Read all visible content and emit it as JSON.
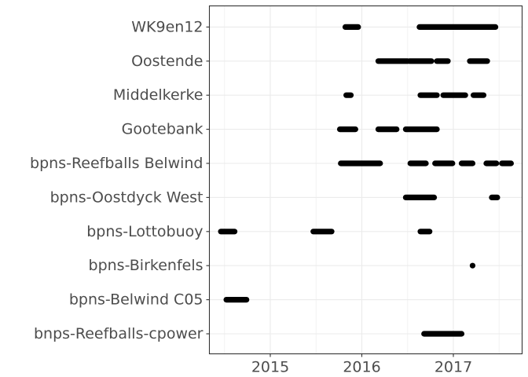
{
  "chart_data": {
    "type": "scatter",
    "title": "",
    "xlabel": "",
    "ylabel": "",
    "xlim": [
      2014.4,
      2017.8
    ],
    "x_ticks": [
      2015,
      2016,
      2017
    ],
    "x_tick_labels": [
      "2015",
      "2016",
      "2017"
    ],
    "minor_x_ticks": [
      2014.5,
      2015.5,
      2016.5,
      2017.5
    ],
    "grid": true,
    "legend": "none",
    "point_color": "#000000",
    "categories": [
      "bnps-Reefballs-cpower",
      "bpns-Belwind C05",
      "bpns-Birkenfels",
      "bpns-Lottobuoy",
      "bpns-Oostdyck West",
      "bpns-Reefballs Belwind",
      "Gootebank",
      "Middelkerke",
      "Oostende",
      "WK9en12"
    ],
    "series": [
      {
        "category": "WK9en12",
        "ranges": [
          [
            2015.82,
            2015.96
          ],
          [
            2016.63,
            2017.46
          ]
        ]
      },
      {
        "category": "Oostende",
        "ranges": [
          [
            2016.18,
            2016.5
          ],
          [
            2016.52,
            2016.76
          ],
          [
            2016.82,
            2016.94
          ],
          [
            2017.18,
            2017.37
          ]
        ]
      },
      {
        "category": "Middelkerke",
        "ranges": [
          [
            2015.83,
            2015.88
          ],
          [
            2016.64,
            2016.82
          ],
          [
            2016.89,
            2017.13
          ],
          [
            2017.22,
            2017.33
          ]
        ]
      },
      {
        "category": "Gootebank",
        "ranges": [
          [
            2015.76,
            2015.93
          ],
          [
            2016.18,
            2016.38
          ],
          [
            2016.48,
            2016.82
          ]
        ]
      },
      {
        "category": "bpns-Reefballs Belwind",
        "ranges": [
          [
            2015.77,
            2016.2
          ],
          [
            2016.53,
            2016.7
          ],
          [
            2016.8,
            2016.99
          ],
          [
            2017.09,
            2017.21
          ],
          [
            2017.36,
            2017.47
          ],
          [
            2017.53,
            2017.63
          ]
        ]
      },
      {
        "category": "bpns-Oostdyck West",
        "ranges": [
          [
            2016.48,
            2016.79
          ],
          [
            2017.42,
            2017.48
          ]
        ]
      },
      {
        "category": "bpns-Lottobuoy",
        "ranges": [
          [
            2014.46,
            2014.61
          ],
          [
            2015.47,
            2015.67
          ],
          [
            2016.64,
            2016.74
          ]
        ]
      },
      {
        "category": "bpns-Birkenfels",
        "ranges": [
          [
            2017.21,
            2017.21
          ]
        ]
      },
      {
        "category": "bpns-Belwind C05",
        "ranges": [
          [
            2014.52,
            2014.74
          ]
        ]
      },
      {
        "category": "bnps-Reefballs-cpower",
        "ranges": [
          [
            2016.68,
            2017.09
          ]
        ]
      }
    ]
  }
}
